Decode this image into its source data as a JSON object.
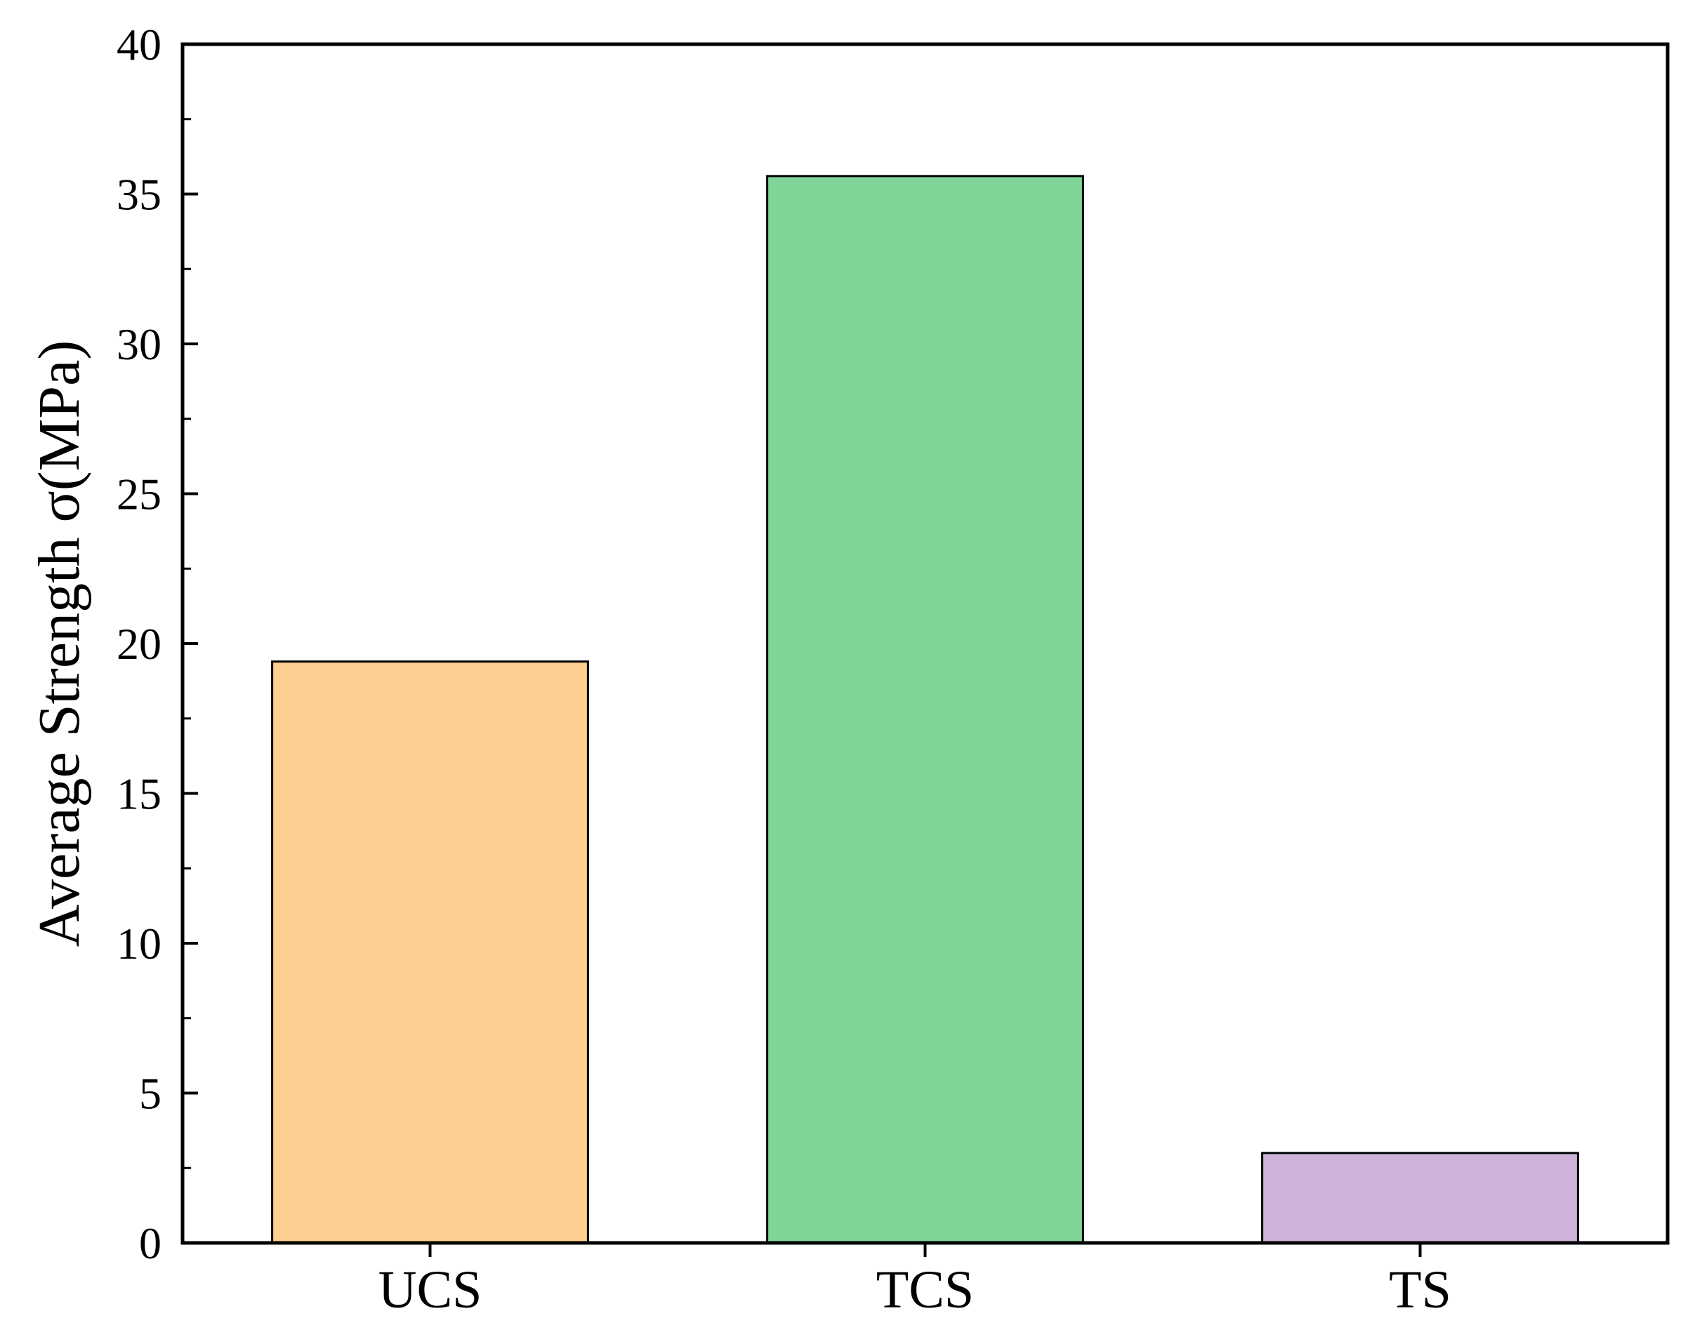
{
  "chart_data": {
    "type": "bar",
    "title": "",
    "xlabel": "",
    "ylabel": "Average Strength σ(MPa)",
    "categories": [
      "UCS",
      "TCS",
      "TS"
    ],
    "values": [
      19.4,
      35.6,
      3.0
    ],
    "colors": [
      "#FDCF91",
      "#7ED597",
      "#CDB4D8"
    ],
    "ylim": [
      0,
      40
    ],
    "yticks": [
      0,
      5,
      10,
      15,
      20,
      25,
      30,
      35,
      40
    ],
    "yticks_minor": [
      2.5,
      7.5,
      12.5,
      17.5,
      22.5,
      27.5,
      32.5,
      37.5
    ],
    "grid": false,
    "legend": "none"
  }
}
